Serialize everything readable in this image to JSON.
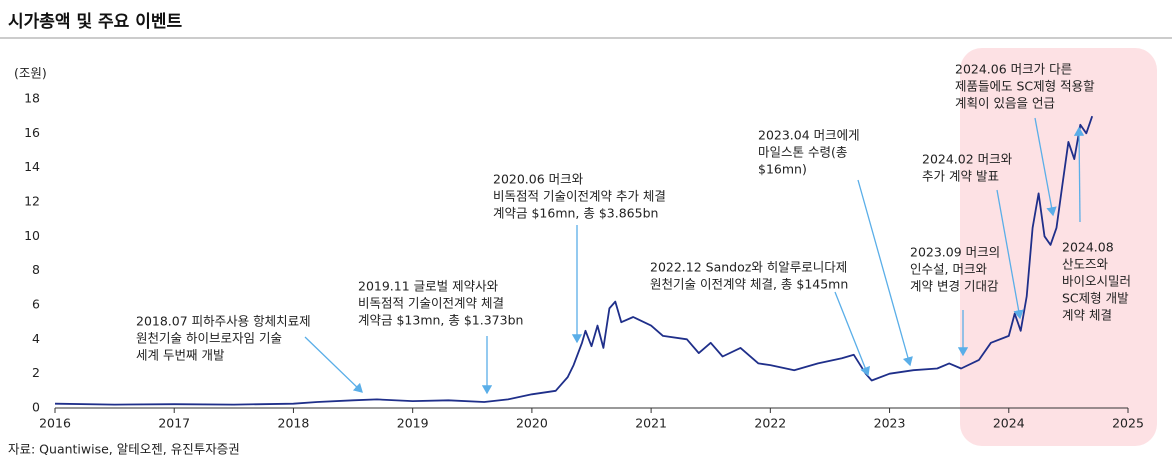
{
  "chart_data": {
    "type": "line",
    "title": "시가총액 및 주요 이벤트",
    "y_label": "(조원)",
    "source": "자료: Quantiwise, 알테오젠, 유진투자증권",
    "color": "#1f2f8a",
    "xlim": [
      2016,
      2025
    ],
    "xticks": [
      2016,
      2017,
      2018,
      2019,
      2020,
      2021,
      2022,
      2023,
      2024,
      2025
    ],
    "ylim": [
      0,
      18
    ],
    "yticks": [
      0,
      2,
      4,
      6,
      8,
      10,
      12,
      14,
      16,
      18
    ],
    "x": [
      2016.0,
      2016.5,
      2017.0,
      2017.5,
      2018.0,
      2018.2,
      2018.5,
      2018.7,
      2019.0,
      2019.3,
      2019.6,
      2019.8,
      2020.0,
      2020.2,
      2020.3,
      2020.35,
      2020.42,
      2020.45,
      2020.5,
      2020.55,
      2020.6,
      2020.65,
      2020.7,
      2020.75,
      2020.85,
      2021.0,
      2021.1,
      2021.3,
      2021.4,
      2021.5,
      2021.6,
      2021.75,
      2021.9,
      2022.0,
      2022.2,
      2022.4,
      2022.6,
      2022.7,
      2022.8,
      2022.85,
      2023.0,
      2023.2,
      2023.4,
      2023.5,
      2023.6,
      2023.75,
      2023.85,
      2024.0,
      2024.05,
      2024.1,
      2024.15,
      2024.2,
      2024.25,
      2024.3,
      2024.35,
      2024.4,
      2024.45,
      2024.5,
      2024.55,
      2024.6,
      2024.65,
      2024.7
    ],
    "values": [
      0.25,
      0.2,
      0.22,
      0.2,
      0.25,
      0.35,
      0.45,
      0.5,
      0.4,
      0.45,
      0.35,
      0.5,
      0.8,
      1.0,
      1.8,
      2.5,
      3.8,
      4.5,
      3.6,
      4.8,
      3.5,
      5.8,
      6.2,
      5.0,
      5.3,
      4.8,
      4.2,
      4.0,
      3.2,
      3.8,
      3.0,
      3.5,
      2.6,
      2.5,
      2.2,
      2.6,
      2.9,
      3.1,
      2.0,
      1.6,
      2.0,
      2.2,
      2.3,
      2.6,
      2.3,
      2.8,
      3.8,
      4.2,
      5.5,
      4.5,
      6.5,
      10.5,
      12.5,
      10.0,
      9.5,
      10.5,
      13.0,
      15.5,
      14.5,
      16.5,
      16.0,
      17.0
    ],
    "annotations": [
      {
        "lines": [
          "2018.07 피하주사용 항체치료제",
          "원천기술 하이브로자임 기술",
          "세계 두번째 개발"
        ]
      },
      {
        "lines": [
          "2019.11 글로벌 제약사와",
          "비독점적 기술이전계약 체결",
          "계약금 $13mn, 총 $1.373bn"
        ]
      },
      {
        "lines": [
          "2020.06 머크와",
          "비독점적 기술이전계약 추가 체결",
          "계약금 $16mn, 총 $3.865bn"
        ]
      },
      {
        "lines": [
          "2022.12 Sandoz와 히알루로니다제",
          "원천기술 이전계약 체결, 총 $145mn"
        ]
      },
      {
        "lines": [
          "2023.04 머크에게",
          "마일스톤 수령(총",
          "$16mn)"
        ]
      },
      {
        "lines": [
          "2023.09 머크의",
          "인수설, 머크와",
          "계약 변경 기대감"
        ]
      },
      {
        "lines": [
          "2024.02 머크와",
          "추가 계약 발표"
        ]
      },
      {
        "lines": [
          "2024.06 머크가 다른",
          "제품들에도 SC제형 적용할",
          "계획이 있음을 언급"
        ]
      },
      {
        "lines": [
          "2024.08",
          "산도즈와",
          "바이오시밀러",
          "SC제형 개발",
          "계약 체결"
        ]
      }
    ]
  }
}
